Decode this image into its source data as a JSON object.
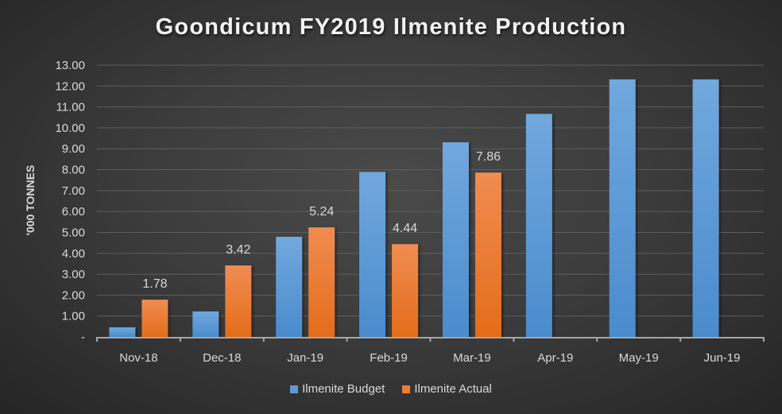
{
  "chart_data": {
    "type": "bar",
    "title": "Goondicum FY2019 Ilmenite Production",
    "xlabel": "",
    "ylabel": "'000 TONNES",
    "categories": [
      "Nov-18",
      "Dec-18",
      "Jan-19",
      "Feb-19",
      "Mar-19",
      "Apr-19",
      "May-19",
      "Jun-19"
    ],
    "series": [
      {
        "name": "Ilmenite Budget",
        "color": "#5b9bd5",
        "values": [
          0.46,
          1.22,
          4.79,
          7.89,
          9.31,
          10.67,
          12.32,
          12.32
        ]
      },
      {
        "name": "Ilmenite Actual",
        "color": "#ed7d31",
        "values": [
          1.78,
          3.42,
          5.24,
          4.44,
          7.86,
          null,
          null,
          null
        ],
        "data_labels": [
          "1.78",
          "3.42",
          "5.24",
          "4.44",
          "7.86"
        ]
      }
    ],
    "ylim": [
      0,
      13
    ],
    "yticks": [
      "-",
      "1.00",
      "2.00",
      "3.00",
      "4.00",
      "5.00",
      "6.00",
      "7.00",
      "8.00",
      "9.00",
      "10.00",
      "11.00",
      "12.00",
      "13.00"
    ],
    "grid": true,
    "legend_position": "bottom"
  },
  "legend": {
    "budget_label": "Ilmenite Budget",
    "actual_label": "Ilmenite Actual"
  }
}
